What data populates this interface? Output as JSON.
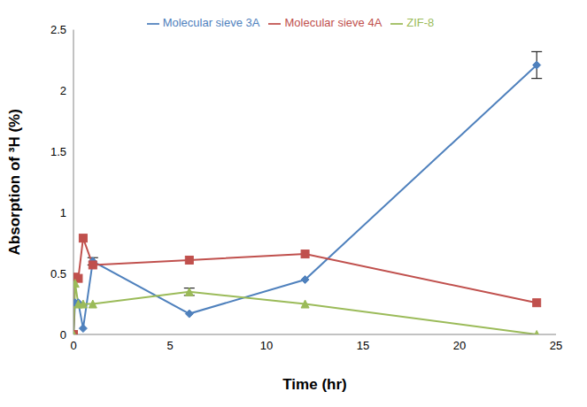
{
  "chart_data": {
    "type": "line",
    "x_label": "Time (hr)",
    "y_label": "Absorption of ³H (%)",
    "x": [
      0,
      0.083,
      0.25,
      0.5,
      1,
      6,
      12,
      24
    ],
    "xlim": [
      0,
      25
    ],
    "xticks": [
      0,
      5,
      10,
      15,
      20,
      25
    ],
    "ylim": [
      0,
      2.5
    ],
    "yticks": [
      0,
      0.5,
      1,
      1.5,
      2,
      2.5
    ],
    "grid": false,
    "legend": "top",
    "series": [
      {
        "name": "Molecular sieve 3A",
        "color": "#4f81bd",
        "marker": "diamond",
        "values": [
          0,
          0.26,
          0.26,
          0.05,
          0.6,
          0.17,
          0.45,
          2.21
        ],
        "errors": [
          null,
          null,
          null,
          null,
          0.03,
          null,
          null,
          0.11
        ]
      },
      {
        "name": "Molecular sieve 4A",
        "color": "#c0504d",
        "marker": "square",
        "values": [
          0,
          0.47,
          0.46,
          0.79,
          0.57,
          0.61,
          0.66,
          0.26
        ],
        "errors": [
          null,
          null,
          null,
          null,
          null,
          null,
          null,
          null
        ]
      },
      {
        "name": "ZIF-8",
        "color": "#9bbb59",
        "marker": "triangle",
        "values": [
          0,
          0.42,
          0.25,
          0.25,
          0.25,
          0.35,
          0.25,
          0
        ],
        "errors": [
          null,
          null,
          null,
          null,
          null,
          0.03,
          null,
          null
        ]
      }
    ]
  }
}
